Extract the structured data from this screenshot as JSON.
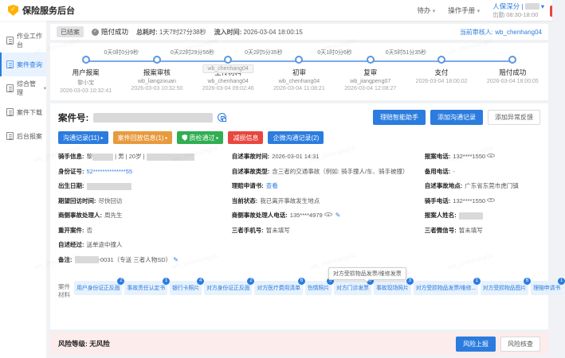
{
  "header": {
    "title": "保险服务后台",
    "nav": [
      {
        "label": "待办"
      },
      {
        "label": "操作手册"
      }
    ],
    "user": {
      "name": "人保深分 |",
      "duty": "出勤 08:30-18:00"
    }
  },
  "sidebar": {
    "items": [
      {
        "label": "作业工作台",
        "active": false,
        "caret": false
      },
      {
        "label": "案件查询",
        "active": true,
        "caret": false
      },
      {
        "label": "综合管理",
        "active": false,
        "caret": true
      },
      {
        "label": "案件下载",
        "active": false,
        "caret": false
      },
      {
        "label": "后台报案",
        "active": false,
        "caret": false
      }
    ]
  },
  "status": {
    "badge": "已结案",
    "result": "赔付成功",
    "total_label": "总耗时:",
    "total_value": "1天7时27分38秒",
    "inflow_label": "流入时间:",
    "inflow_value": "2026-03-04 18:00:15",
    "reviewer_label": "当前审核人:",
    "reviewer_value": "wb_chenhang04"
  },
  "timeline": {
    "tooltip": "wb_chenhang04",
    "steps": [
      {
        "name": "用户报案",
        "person": "黎小宝",
        "time": "2026-03-03 10:32:41"
      },
      {
        "name": "报案审核",
        "person": "wb_liangzixuan",
        "time": "2026-03-03 10:32:50"
      },
      {
        "name": "上传材料",
        "person": "wb_chenhang04",
        "time": "2026-03-04 09:02:46"
      },
      {
        "name": "初审",
        "person": "wb_chenhang04",
        "time": "2026-03-04 11:08:21"
      },
      {
        "name": "复审",
        "person": "wb_jiangpeng07",
        "time": "2026-03-04 12:08:27"
      },
      {
        "name": "支付",
        "person": "",
        "time": "2026-03-04 18:00:02"
      },
      {
        "name": "赔付成功",
        "person": "",
        "time": "2026-03-04 18:00:05"
      }
    ],
    "durations": [
      "0天0时0分9秒",
      "0天22时29分56秒",
      "0天2时5分35秒",
      "0天1时0分6秒",
      "0天5时51分35秒"
    ]
  },
  "case": {
    "label": "案件号:",
    "actions": [
      {
        "label": "理赔智能助手",
        "style": "primary"
      },
      {
        "label": "添加沟通记录",
        "style": "primary"
      },
      {
        "label": "添加异常反馈",
        "style": "plain"
      }
    ],
    "tags": [
      {
        "label": "沟通记录(11)",
        "color": "#2b7cde",
        "arrow": true,
        "shield": false
      },
      {
        "label": "案件回放信息(1)",
        "color": "#e89a3c",
        "arrow": true,
        "shield": false
      },
      {
        "label": "质检通过",
        "color": "#2fae52",
        "arrow": true,
        "shield": true
      },
      {
        "label": "减损信息",
        "color": "#e8473f",
        "arrow": false,
        "shield": false
      },
      {
        "label": "企微沟通记录(2)",
        "color": "#2b7cde",
        "arrow": false,
        "shield": false
      }
    ],
    "columns": [
      [
        {
          "label": "骑手信息:",
          "segs": [
            {
              "t": "text",
              "v": "黎"
            },
            {
              "t": "redact",
              "w": 26
            },
            {
              "t": "text",
              "v": " | 男 | 20岁 | "
            },
            {
              "t": "redact",
              "w": 60
            }
          ]
        },
        {
          "label": "身份证号:",
          "segs": [
            {
              "t": "blue",
              "v": "52**************55"
            }
          ]
        },
        {
          "label": "出生日期:",
          "segs": [
            {
              "t": "redact",
              "w": 56
            }
          ]
        },
        {
          "label": "期望回访时间:",
          "segs": [
            {
              "t": "text",
              "v": "尽快回访"
            }
          ]
        },
        {
          "label": "商侧事故处理人:",
          "segs": [
            {
              "t": "text",
              "v": "周先生"
            }
          ]
        },
        {
          "label": "重开案件:",
          "segs": [
            {
              "t": "text",
              "v": "否"
            }
          ]
        },
        {
          "label": "自述经过:",
          "segs": [
            {
              "t": "text",
              "v": "送单途中撞人"
            }
          ]
        },
        {
          "label": "备注:",
          "segs": [
            {
              "t": "redact",
              "w": 30
            },
            {
              "t": "text",
              "v": "-0031（专送 三者人物SD）"
            },
            {
              "t": "edit"
            }
          ]
        }
      ],
      [
        {
          "label": "自述事故时间:",
          "segs": [
            {
              "t": "text",
              "v": "2026-03-01 14:31"
            }
          ]
        },
        {
          "label": "自述事故类型:",
          "segs": [
            {
              "t": "text",
              "v": "含三者的交通事故（例如: 骑手撞人/车、骑手被撞）"
            }
          ]
        },
        {
          "label": "理赔申请书:",
          "segs": [
            {
              "t": "link",
              "v": "查看"
            }
          ]
        },
        {
          "label": "当前状态:",
          "segs": [
            {
              "t": "text",
              "v": "我已离开事故发生地点"
            }
          ]
        },
        {
          "label": "商侧事故处理人电话:",
          "segs": [
            {
              "t": "text",
              "v": "135****4979"
            },
            {
              "t": "eye"
            },
            {
              "t": "edit"
            }
          ]
        },
        {
          "label": "三者手机号:",
          "segs": [
            {
              "t": "text",
              "v": "暂未填写"
            }
          ]
        }
      ],
      [
        {
          "label": "报案电话:",
          "segs": [
            {
              "t": "text",
              "v": "132****1550"
            },
            {
              "t": "eye"
            }
          ]
        },
        {
          "label": "备用电话:",
          "segs": [
            {
              "t": "text",
              "v": "-"
            }
          ]
        },
        {
          "label": "自述事故地点:",
          "segs": [
            {
              "t": "text",
              "v": "广东省东莞市虎门镇"
            }
          ]
        },
        {
          "label": "骑手电话:",
          "segs": [
            {
              "t": "text",
              "v": "132****1550"
            },
            {
              "t": "eye"
            }
          ]
        },
        {
          "label": "报案人姓名:",
          "segs": [
            {
              "t": "redact",
              "w": 30
            }
          ]
        },
        {
          "label": "三者微信号:",
          "segs": [
            {
              "t": "text",
              "v": "暂未填写"
            }
          ]
        }
      ]
    ]
  },
  "materials": {
    "label": "案件材料",
    "tooltip": "对方受损物品发票/维修发票",
    "items": [
      {
        "label": "用户身份证正反面",
        "count": 2
      },
      {
        "label": "事故责任认定书",
        "count": 1
      },
      {
        "label": "银行卡照片",
        "count": 4
      },
      {
        "label": "对方身份证正反面",
        "count": 2
      },
      {
        "label": "对方医疗费用清单",
        "count": 6
      },
      {
        "label": "伤情照片",
        "count": 5
      },
      {
        "label": "对方门诊发票",
        "count": 3
      },
      {
        "label": "事故现场照片",
        "count": 3
      },
      {
        "label": "对方受损物品发票/维修...",
        "count": 1
      },
      {
        "label": "对方受损物品图片",
        "count": 6
      },
      {
        "label": "理赔申请书",
        "count": 1
      }
    ]
  },
  "risk": {
    "label": "风险等级:",
    "value": "无风险",
    "buttons": [
      {
        "label": "风险上报",
        "style": "primary"
      },
      {
        "label": "风险核查",
        "style": "plain"
      }
    ]
  },
  "watermark": "wb_chenhang04",
  "icons": {
    "caret_down": "▾",
    "arrow_right": "▸",
    "edit": "✎",
    "check": "✓"
  }
}
